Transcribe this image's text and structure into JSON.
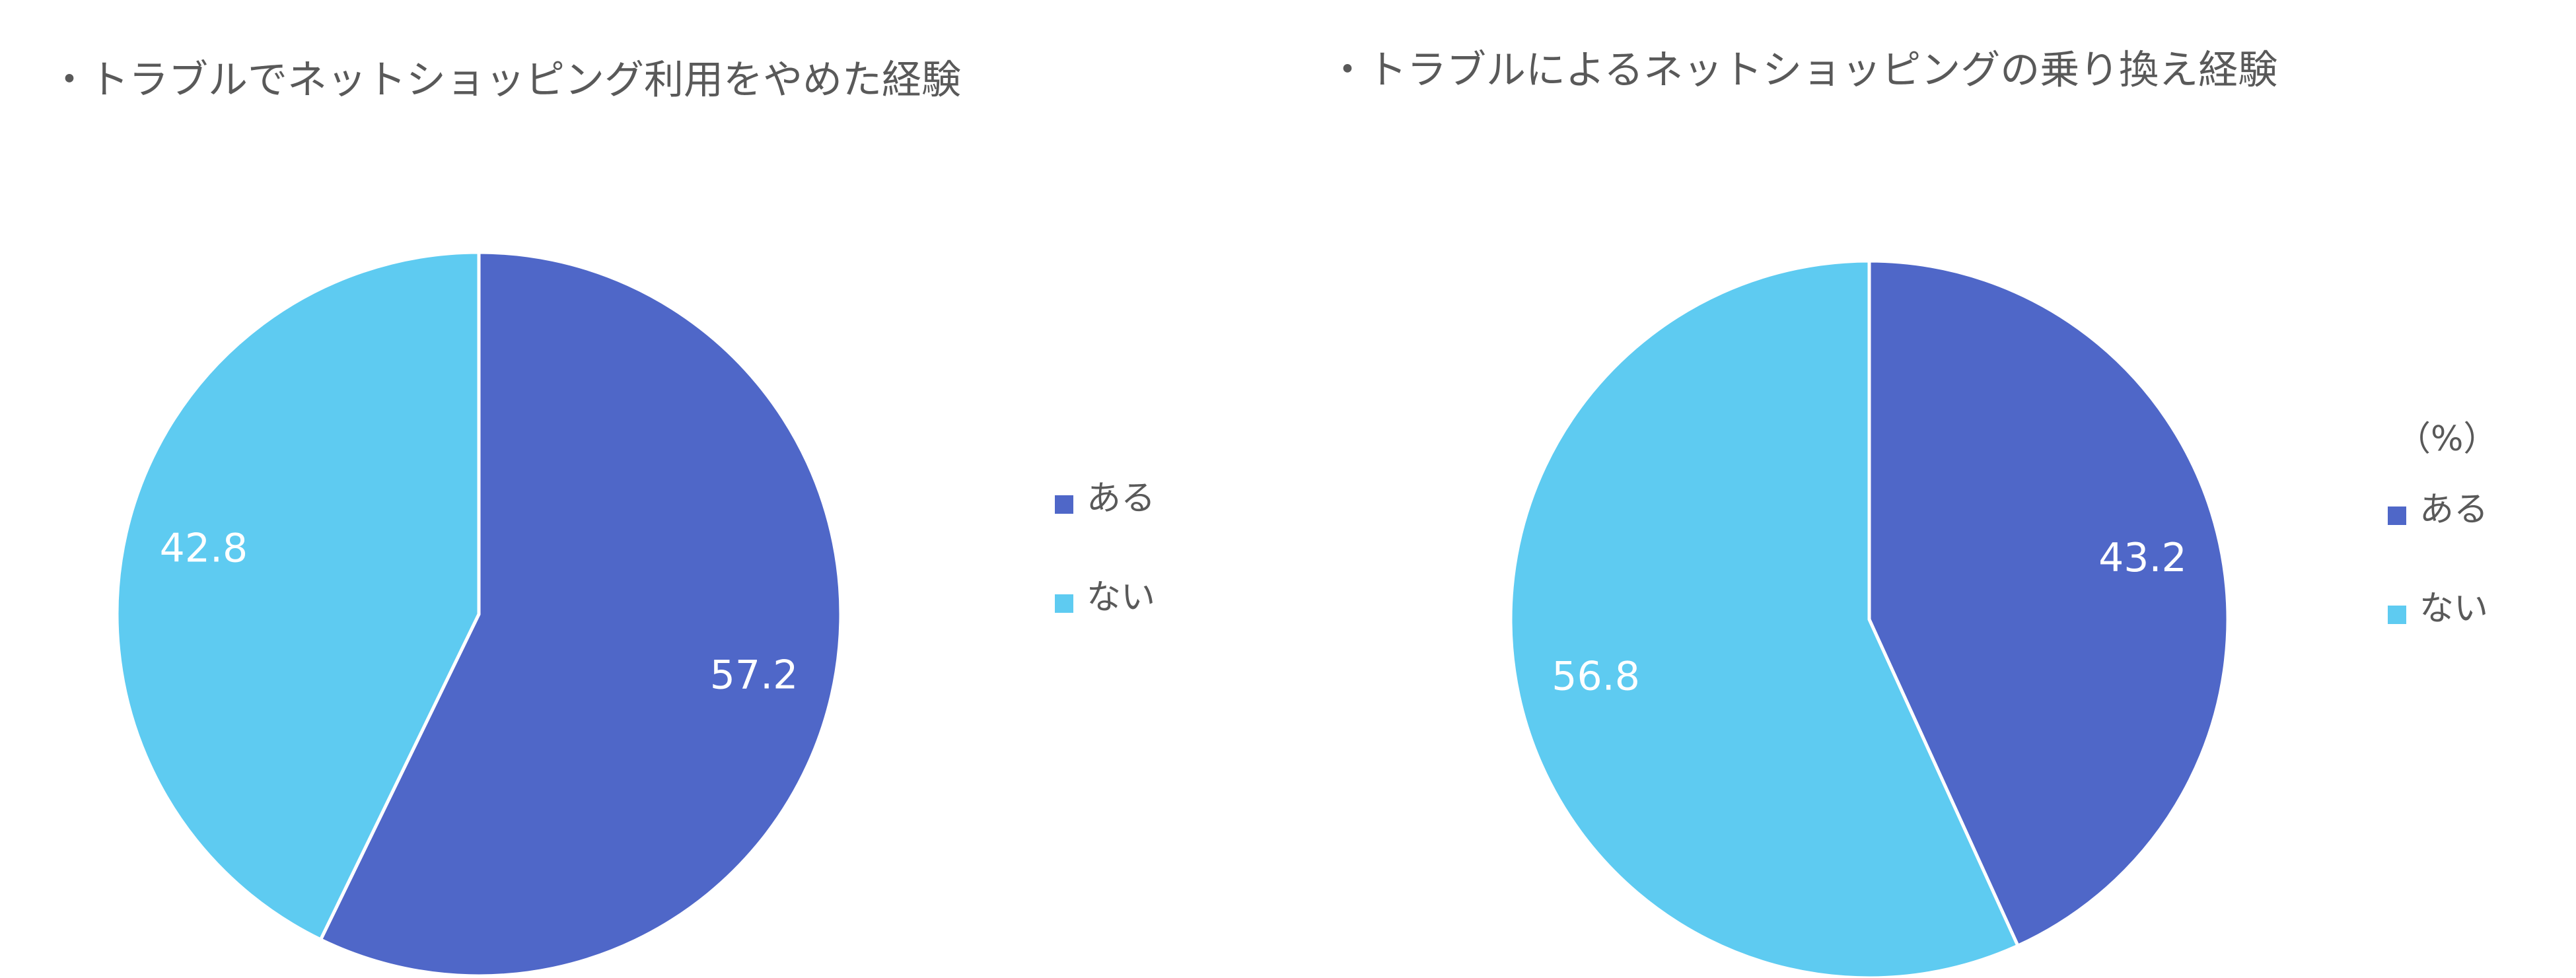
{
  "chart_data": [
    {
      "type": "pie",
      "title": "・トラブルでネットショッピング利用をやめた経験",
      "categories": [
        "ある",
        "ない"
      ],
      "values": [
        57.2,
        42.8
      ],
      "colors": [
        "#4f67c8",
        "#5ecbf1"
      ]
    },
    {
      "type": "pie",
      "title": "・トラブルによるネットショッピングの乗り換え経験",
      "unit_label": "（%）",
      "categories": [
        "ある",
        "ない"
      ],
      "values": [
        43.2,
        56.8
      ],
      "colors": [
        "#4f67c8",
        "#5ecbf1"
      ]
    }
  ]
}
